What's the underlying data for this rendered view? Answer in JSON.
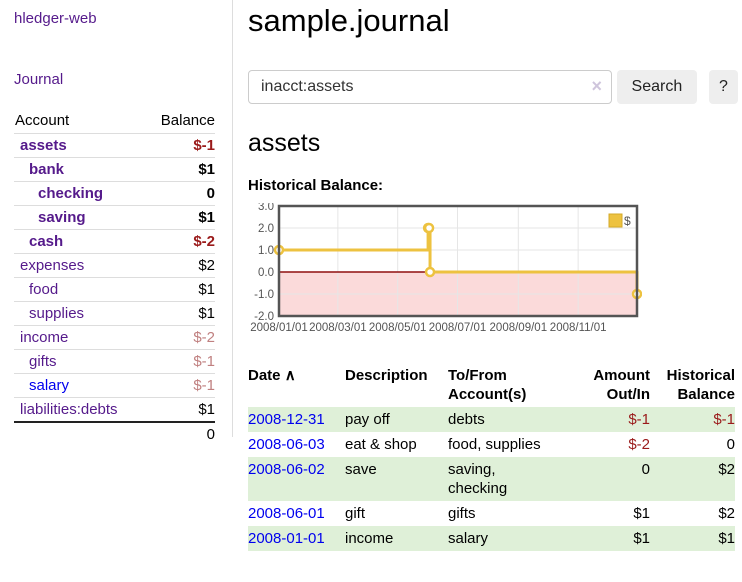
{
  "app": {
    "title": "hledger-web",
    "nav_journal": "Journal"
  },
  "colors": {
    "link_visited_purple": "#551a8b",
    "link_unvisited_blue": "#0000ee",
    "negative_strong": "#9a1a1a",
    "negative_soft": "#c08080",
    "row_stripe_green": "#dff0d8",
    "chart_gold": "#edc240"
  },
  "sidebar": {
    "header": {
      "account": "Account",
      "balance": "Balance"
    },
    "accounts": [
      {
        "name": "assets",
        "level": 1,
        "bold": true,
        "balance": "$-1",
        "balance_class": "neg-strong",
        "link": "visited"
      },
      {
        "name": "bank",
        "level": 2,
        "bold": true,
        "balance": "$1",
        "balance_class": "pos",
        "link": "visited"
      },
      {
        "name": "checking",
        "level": 3,
        "bold": true,
        "balance": "0",
        "balance_class": "pos",
        "link": "visited"
      },
      {
        "name": "saving",
        "level": 3,
        "bold": true,
        "balance": "$1",
        "balance_class": "pos",
        "link": "visited"
      },
      {
        "name": "cash",
        "level": 2,
        "bold": true,
        "balance": "$-2",
        "balance_class": "neg-strong",
        "link": "visited"
      },
      {
        "name": "expenses",
        "level": 1,
        "bold": false,
        "balance": "$2",
        "balance_class": "pos",
        "link": "visited"
      },
      {
        "name": "food",
        "level": 2,
        "bold": false,
        "balance": "$1",
        "balance_class": "pos",
        "link": "visited"
      },
      {
        "name": "supplies",
        "level": 2,
        "bold": false,
        "balance": "$1",
        "balance_class": "pos",
        "link": "visited"
      },
      {
        "name": "income",
        "level": 1,
        "bold": false,
        "balance": "$-2",
        "balance_class": "neg-soft",
        "link": "visited"
      },
      {
        "name": "gifts",
        "level": 2,
        "bold": false,
        "balance": "$-1",
        "balance_class": "neg-soft",
        "link": "visited"
      },
      {
        "name": "salary",
        "level": 2,
        "bold": false,
        "balance": "$-1",
        "balance_class": "neg-soft",
        "link": "unvisited"
      },
      {
        "name": "liabilities:debts",
        "level": 1,
        "bold": false,
        "balance": "$1",
        "balance_class": "pos",
        "link": "visited"
      }
    ],
    "total": "0"
  },
  "main": {
    "title": "sample.journal",
    "search": {
      "value": "inacct:assets",
      "clear_icon": "×",
      "search_button": "Search",
      "help_button": "?"
    },
    "account_heading": "assets",
    "chart_label": "Historical Balance:",
    "register": {
      "headers": [
        "Date",
        "Description",
        "To/From\nAccount(s)",
        "Amount\nOut/In",
        "Historical\nBalance"
      ],
      "sort_indicator": "∧",
      "rows": [
        {
          "date": "2008-12-31",
          "description": "pay off",
          "accounts": "debts",
          "amount": "$-1",
          "amount_neg": true,
          "balance": "$-1",
          "balance_neg": true,
          "shaded": true
        },
        {
          "date": "2008-06-03",
          "description": "eat & shop",
          "accounts": "food, supplies",
          "amount": "$-2",
          "amount_neg": true,
          "balance": "0",
          "balance_neg": false,
          "shaded": false
        },
        {
          "date": "2008-06-02",
          "description": "save",
          "accounts": "saving,\nchecking",
          "amount": "0",
          "amount_neg": false,
          "balance": "$2",
          "balance_neg": false,
          "shaded": true
        },
        {
          "date": "2008-06-01",
          "description": "gift",
          "accounts": "gifts",
          "amount": "$1",
          "amount_neg": false,
          "balance": "$2",
          "balance_neg": false,
          "shaded": false
        },
        {
          "date": "2008-01-01",
          "description": "income",
          "accounts": "salary",
          "amount": "$1",
          "amount_neg": false,
          "balance": "$1",
          "balance_neg": false,
          "shaded": true
        }
      ]
    }
  },
  "chart_data": {
    "type": "line",
    "step": true,
    "title": "Historical Balance:",
    "series": [
      {
        "name": "$",
        "color": "#edc240",
        "points": [
          [
            "2008-01-01",
            1
          ],
          [
            "2008-06-01",
            2
          ],
          [
            "2008-06-02",
            2
          ],
          [
            "2008-06-03",
            0
          ],
          [
            "2008-12-31",
            -1
          ]
        ]
      }
    ],
    "xlim": [
      "2008-01-01",
      "2008-12-31"
    ],
    "ylim": [
      -2,
      3
    ],
    "x_ticks": [
      "2008/01/01",
      "2008/03/01",
      "2008/05/01",
      "2008/07/01",
      "2008/09/01",
      "2008/11/01"
    ],
    "y_ticks": [
      "3.0",
      "2.0",
      "1.0",
      "0.0",
      "-1.0",
      "-2.0"
    ],
    "grid": true,
    "legend_position": "top-right",
    "legend": {
      "label": "$",
      "swatch_color": "#edc240"
    },
    "negative_region_color": "#fbdada",
    "zero_line_color": "#8f0f0f",
    "grid_color": "#e6e6e6",
    "border_color": "#545454",
    "tick_label_color": "#545454"
  }
}
